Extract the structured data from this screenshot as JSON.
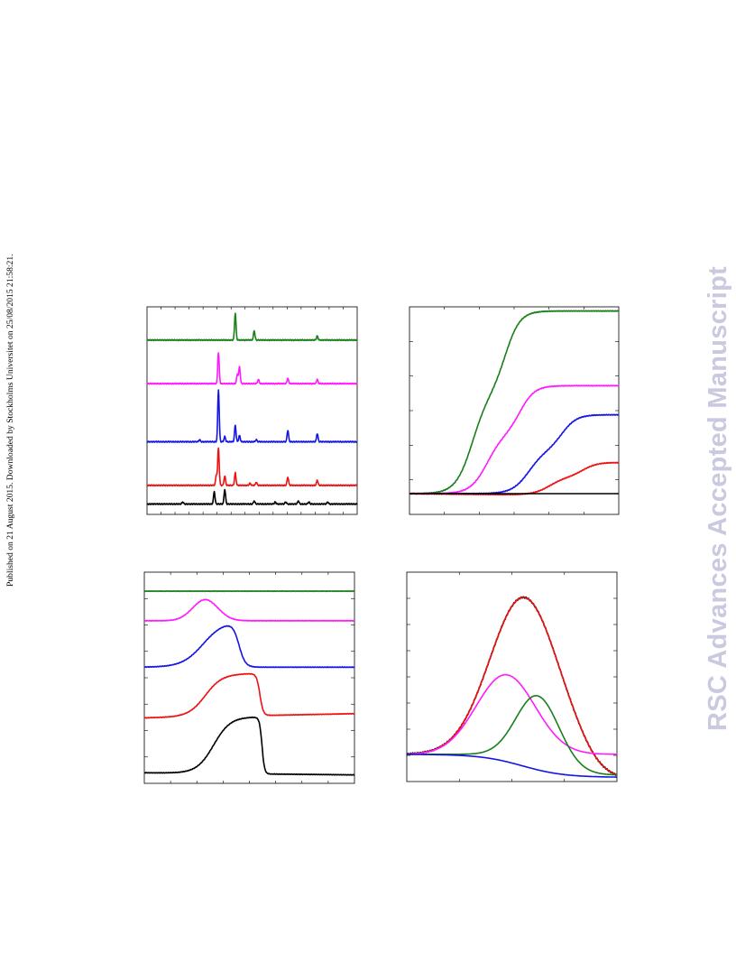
{
  "page": {
    "side_note": "Published on 21 August 2015. Downloaded by Stockholms Universitet on 25/08/2015 21:58:21.",
    "watermark": "RSC Advances Accepted Manuscript"
  },
  "colors": {
    "green": "#1a7f1a",
    "magenta": "#ff1aff",
    "blue": "#1414e6",
    "red": "#ee1111",
    "black": "#000000"
  },
  "chart_data": [
    {
      "type": "line",
      "description_position": "top-left",
      "series": [
        {
          "color": "green",
          "offset": 0.84,
          "peaks": [
            [
              0.42,
              0.13
            ],
            [
              0.51,
              0.045
            ],
            [
              0.81,
              0.02
            ]
          ]
        },
        {
          "color": "magenta",
          "offset": 0.63,
          "peaks": [
            [
              0.34,
              0.15
            ],
            [
              0.43,
              0.045
            ],
            [
              0.44,
              0.08
            ],
            [
              0.53,
              0.02
            ],
            [
              0.67,
              0.025
            ],
            [
              0.81,
              0.02
            ]
          ]
        },
        {
          "color": "blue",
          "offset": 0.35,
          "peaks": [
            [
              0.25,
              0.01
            ],
            [
              0.34,
              0.25
            ],
            [
              0.37,
              0.025
            ],
            [
              0.42,
              0.08
            ],
            [
              0.44,
              0.03
            ],
            [
              0.52,
              0.01
            ],
            [
              0.67,
              0.055
            ],
            [
              0.81,
              0.04
            ]
          ]
        },
        {
          "color": "red",
          "offset": 0.14,
          "peaks": [
            [
              0.33,
              0.05
            ],
            [
              0.34,
              0.18
            ],
            [
              0.37,
              0.045
            ],
            [
              0.42,
              0.06
            ],
            [
              0.49,
              0.01
            ],
            [
              0.52,
              0.015
            ],
            [
              0.67,
              0.04
            ],
            [
              0.81,
              0.025
            ]
          ]
        },
        {
          "color": "black",
          "offset": 0.05,
          "peaks": [
            [
              0.17,
              0.01
            ],
            [
              0.32,
              0.06
            ],
            [
              0.37,
              0.07
            ],
            [
              0.51,
              0.015
            ],
            [
              0.61,
              0.01
            ],
            [
              0.66,
              0.01
            ],
            [
              0.72,
              0.015
            ],
            [
              0.77,
              0.01
            ],
            [
              0.86,
              0.01
            ]
          ]
        }
      ]
    },
    {
      "type": "line",
      "description_position": "top-right",
      "series": [
        {
          "color": "green",
          "plateau": 0.88
        },
        {
          "color": "magenta",
          "plateau": 0.52
        },
        {
          "color": "blue",
          "plateau": 0.38
        },
        {
          "color": "red",
          "plateau": 0.16
        },
        {
          "color": "black",
          "plateau": 0.0
        }
      ]
    },
    {
      "type": "line",
      "description_position": "bottom-left",
      "series": [
        {
          "color": "green",
          "baseline": 0.91
        },
        {
          "color": "magenta",
          "baseline": 0.77
        },
        {
          "color": "blue",
          "baseline": 0.55
        },
        {
          "color": "red",
          "baseline": 0.31
        },
        {
          "color": "black",
          "baseline": 0.05
        }
      ]
    },
    {
      "type": "line",
      "description_position": "bottom-right",
      "series": [
        {
          "color": "black",
          "role": "measured"
        },
        {
          "color": "red",
          "role": "fit-sum"
        },
        {
          "color": "magenta",
          "role": "component-1"
        },
        {
          "color": "green",
          "role": "component-2"
        },
        {
          "color": "blue",
          "role": "component-3"
        }
      ]
    }
  ]
}
